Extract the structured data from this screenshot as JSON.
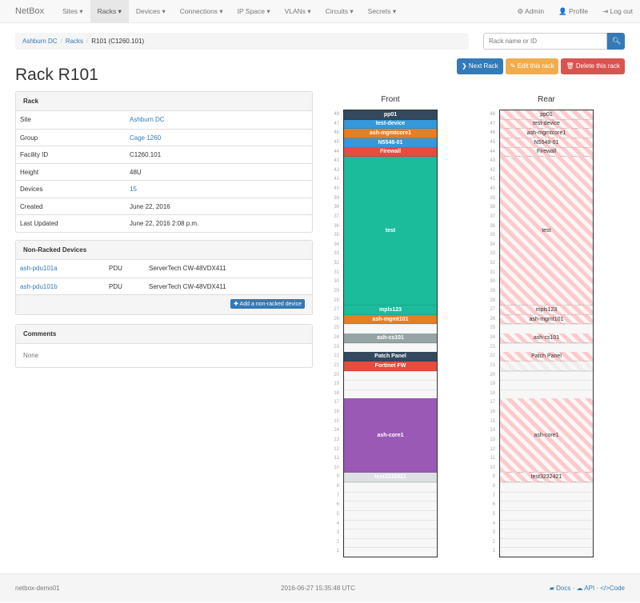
{
  "navbar": {
    "brand": "NetBox",
    "items": [
      "Sites ▾",
      "Racks ▾",
      "Devices ▾",
      "Connections ▾",
      "IP Space ▾",
      "VLANs ▾",
      "Circuits ▾",
      "Secrets ▾"
    ],
    "active": 1,
    "right": [
      "⚙ Admin",
      "👤 Profile",
      "⇥ Log out"
    ]
  },
  "breadcrumb": [
    "Ashburn DC",
    "Racks",
    "R101 (C1260.101)"
  ],
  "search": {
    "placeholder": "Rack name or ID",
    "icon": "search-icon"
  },
  "buttons": {
    "next": "❯ Next Rack",
    "edit": "✎ Edit this rack",
    "delete": "🗑 Delete this rack"
  },
  "colors": {
    "primary": "#337ab7",
    "warning": "#f0ad4e",
    "danger": "#d9534f"
  },
  "title": "Rack R101",
  "rack_panel": {
    "heading": "Rack",
    "rows": [
      [
        "Site",
        "Ashburn DC",
        true
      ],
      [
        "Group",
        "Cage 1260",
        true
      ],
      [
        "Facility ID",
        "C1260.101",
        false
      ],
      [
        "Height",
        "48U",
        false
      ],
      [
        "Devices",
        "15",
        true
      ],
      [
        "Created",
        "June 22, 2016",
        false
      ],
      [
        "Last Updated",
        "June 22, 2016 2:08 p.m.",
        false
      ]
    ]
  },
  "nonracked": {
    "heading": "Non-Racked Devices",
    "rows": [
      [
        "ash-pdu101a",
        "PDU",
        "ServerTech CW-48VDX411"
      ],
      [
        "ash-pdu101b",
        "PDU",
        "ServerTech CW-48VDX411"
      ]
    ],
    "add": "✚ Add a non-racked device"
  },
  "comments": {
    "heading": "Comments",
    "text": "None"
  },
  "rack": {
    "front_title": "Front",
    "rear_title": "Rear",
    "units": 48,
    "devices": [
      {
        "name": "pp01",
        "top": 48,
        "size": 1,
        "color": "#34495e",
        "rear": true
      },
      {
        "name": "test-device",
        "top": 47,
        "size": 1,
        "color": "#3498db",
        "rear": true
      },
      {
        "name": "ash-mgmtcore1",
        "top": 46,
        "size": 1,
        "color": "#e67e22",
        "rear": true
      },
      {
        "name": "N5548-01",
        "top": 45,
        "size": 1,
        "color": "#3498db",
        "rear": true
      },
      {
        "name": "Firewall",
        "top": 44,
        "size": 1,
        "color": "#e74c3c",
        "rear": true
      },
      {
        "name": "test",
        "top": 43,
        "size": 16,
        "color": "#1abc9c",
        "rear": true
      },
      {
        "name": "mpls123",
        "top": 27,
        "size": 1,
        "color": "#1abc9c",
        "rear": true
      },
      {
        "name": "ash-mgmt101",
        "top": 26,
        "size": 1,
        "color": "#e67e22",
        "rear": true
      },
      {
        "name": "ash-cs101",
        "top": 24,
        "size": 1,
        "color": "#95a5a6",
        "rear": true
      },
      {
        "name": "Patch Panel",
        "top": 22,
        "size": 1,
        "color": "#34495e",
        "rear": true
      },
      {
        "name": "Fortinet FW",
        "top": 21,
        "size": 1,
        "color": "#e74c3c",
        "rear": false
      },
      {
        "name": "ash-core1",
        "top": 17,
        "size": 8,
        "color": "#9b59b6",
        "rear": true
      },
      {
        "name": "test3232421",
        "top": 9,
        "size": 1,
        "color": "#dde1e3",
        "rear": true
      }
    ]
  },
  "footer": {
    "host": "netbox-demo01",
    "time": "2016-06-27 15:35:48 UTC",
    "docs": "Docs",
    "api": "API",
    "code": "Code"
  }
}
